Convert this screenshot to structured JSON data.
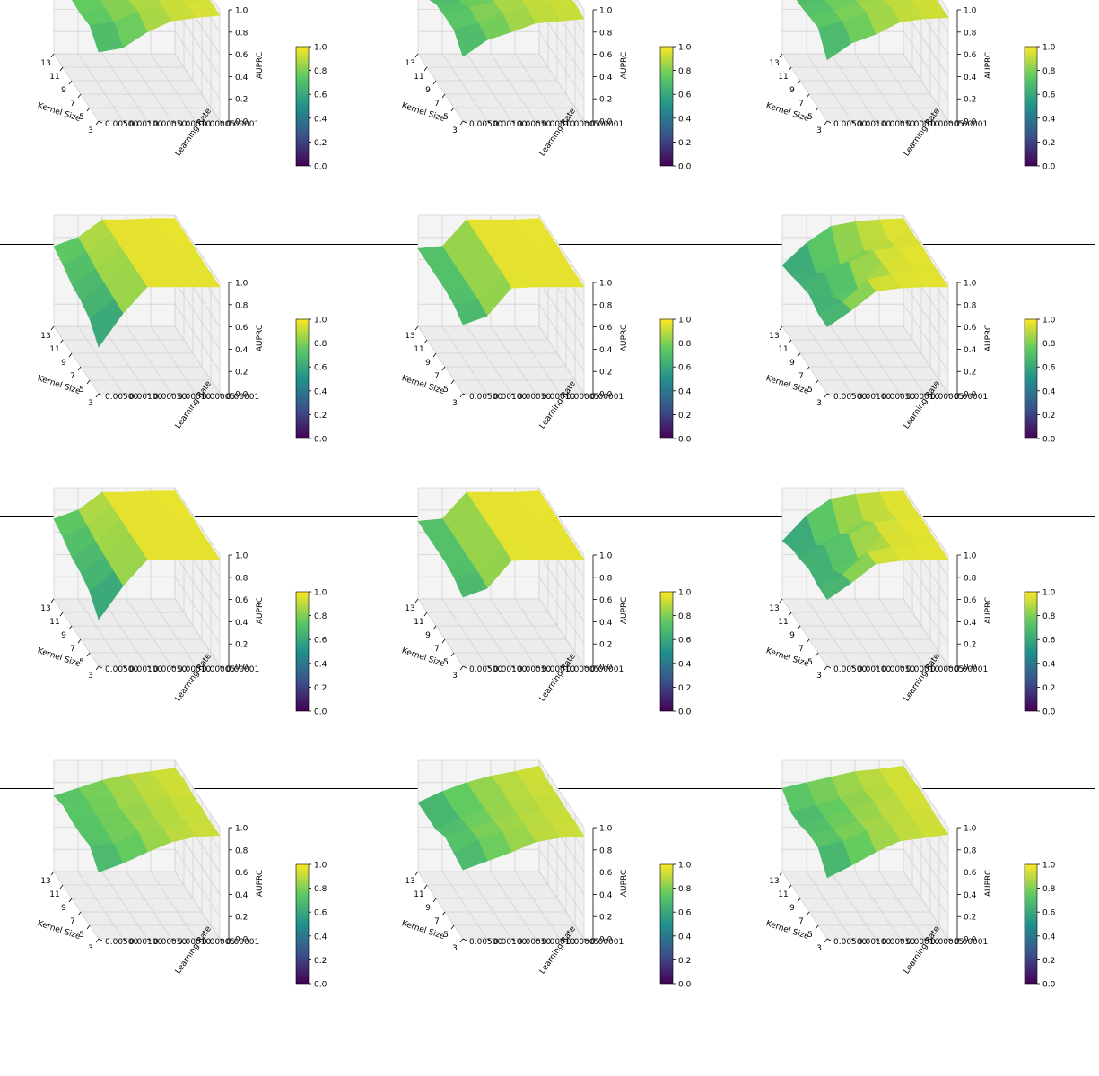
{
  "figure": {
    "rows": 4,
    "cols": 3,
    "zlabel": "AUPRC",
    "xlabel": "Kernel Size",
    "ylabel": "Learning Rate",
    "x_ticks": [
      "13",
      "11",
      "9",
      "7",
      "5",
      "3"
    ],
    "y_ticks": [
      "0.00001",
      "0.00005",
      "0.00010",
      "0.00050",
      "0.00100",
      "0.00500"
    ],
    "z_ticks": [
      "0.0",
      "0.2",
      "0.4",
      "0.6",
      "0.8",
      "1.0"
    ],
    "colorbar_ticks": [
      "0.0",
      "0.2",
      "0.4",
      "0.6",
      "0.8",
      "1.0"
    ],
    "colormap": "viridis"
  },
  "chart_data": [
    {
      "type": "surface",
      "xlabel": "Kernel Size",
      "ylabel": "Learning Rate",
      "zlabel": "AUPRC",
      "zlim": [
        0,
        1
      ],
      "x": [
        13,
        11,
        9,
        7,
        5,
        3
      ],
      "y": [
        "0.00001",
        "0.00005",
        "0.00010",
        "0.00050",
        "0.00100",
        "0.00500"
      ],
      "z": [
        [
          0.92,
          0.95,
          0.93,
          0.93,
          0.95,
          0.95
        ],
        [
          0.9,
          0.93,
          0.92,
          0.92,
          0.93,
          0.93
        ],
        [
          0.88,
          0.9,
          0.91,
          0.9,
          0.91,
          0.9
        ],
        [
          0.84,
          0.86,
          0.85,
          0.83,
          0.86,
          0.8
        ],
        [
          0.8,
          0.8,
          0.8,
          0.77,
          0.77,
          0.66
        ],
        [
          0.7,
          0.75,
          0.73,
          0.72,
          0.74,
          0.62
        ]
      ]
    },
    {
      "type": "surface",
      "xlabel": "Kernel Size",
      "ylabel": "Learning Rate",
      "zlabel": "AUPRC",
      "zlim": [
        0,
        1
      ],
      "x": [
        13,
        11,
        9,
        7,
        5,
        3
      ],
      "y": [
        "0.00001",
        "0.00005",
        "0.00010",
        "0.00050",
        "0.00100",
        "0.00500"
      ],
      "z": [
        [
          0.93,
          0.95,
          0.93,
          0.92,
          0.93,
          0.92
        ],
        [
          0.9,
          0.92,
          0.91,
          0.91,
          0.92,
          0.9
        ],
        [
          0.87,
          0.9,
          0.86,
          0.9,
          0.9,
          0.88
        ],
        [
          0.8,
          0.82,
          0.77,
          0.83,
          0.85,
          0.8
        ],
        [
          0.75,
          0.75,
          0.7,
          0.78,
          0.76,
          0.73
        ],
        [
          0.72,
          0.62,
          0.69,
          0.7,
          0.7,
          0.58
        ]
      ]
    },
    {
      "type": "surface",
      "xlabel": "Kernel Size",
      "ylabel": "Learning Rate",
      "zlabel": "AUPRC",
      "zlim": [
        0,
        1
      ],
      "x": [
        13,
        11,
        9,
        7,
        5,
        3
      ],
      "y": [
        "0.00001",
        "0.00005",
        "0.00010",
        "0.00050",
        "0.00100",
        "0.00500"
      ],
      "z": [
        [
          0.95,
          0.93,
          0.93,
          0.94,
          0.93,
          0.93
        ],
        [
          0.9,
          0.92,
          0.9,
          0.93,
          0.92,
          0.92
        ],
        [
          0.88,
          0.87,
          0.88,
          0.85,
          0.9,
          0.89
        ],
        [
          0.8,
          0.75,
          0.8,
          0.82,
          0.85,
          0.78
        ],
        [
          0.74,
          0.7,
          0.72,
          0.75,
          0.77,
          0.7
        ],
        [
          0.7,
          0.68,
          0.68,
          0.7,
          0.72,
          0.55
        ]
      ]
    },
    {
      "type": "surface",
      "xlabel": "Kernel Size",
      "ylabel": "Learning Rate",
      "zlabel": "AUPRC",
      "zlim": [
        0,
        1
      ],
      "x": [
        13,
        11,
        9,
        7,
        5,
        3
      ],
      "y": [
        "0.00001",
        "0.00005",
        "0.00010",
        "0.00050",
        "0.00100",
        "0.00500"
      ],
      "z": [
        [
          0.97,
          0.97,
          0.97,
          0.96,
          0.96,
          0.96
        ],
        [
          0.97,
          0.96,
          0.96,
          0.96,
          0.96,
          0.96
        ],
        [
          0.96,
          0.96,
          0.96,
          0.96,
          0.96,
          0.96
        ],
        [
          0.96,
          0.96,
          0.96,
          0.96,
          0.96,
          0.96
        ],
        [
          0.8,
          0.78,
          0.75,
          0.74,
          0.73,
          0.72
        ],
        [
          0.72,
          0.68,
          0.62,
          0.6,
          0.55,
          0.42
        ]
      ]
    },
    {
      "type": "surface",
      "xlabel": "Kernel Size",
      "ylabel": "Learning Rate",
      "zlabel": "AUPRC",
      "zlim": [
        0,
        1
      ],
      "x": [
        13,
        11,
        9,
        7,
        5,
        3
      ],
      "y": [
        "0.00001",
        "0.00005",
        "0.00010",
        "0.00050",
        "0.00100",
        "0.00500"
      ],
      "z": [
        [
          0.97,
          0.97,
          0.97,
          0.96,
          0.96,
          0.96
        ],
        [
          0.96,
          0.96,
          0.96,
          0.96,
          0.96,
          0.96
        ],
        [
          0.96,
          0.96,
          0.96,
          0.96,
          0.96,
          0.96
        ],
        [
          0.96,
          0.96,
          0.96,
          0.96,
          0.96,
          0.95
        ],
        [
          0.72,
          0.72,
          0.72,
          0.72,
          0.72,
          0.7
        ],
        [
          0.7,
          0.7,
          0.7,
          0.7,
          0.68,
          0.62
        ]
      ]
    },
    {
      "type": "surface",
      "xlabel": "Kernel Size",
      "ylabel": "Learning Rate",
      "zlabel": "AUPRC",
      "zlim": [
        0,
        1
      ],
      "x": [
        13,
        11,
        9,
        7,
        5,
        3
      ],
      "y": [
        "0.00001",
        "0.00005",
        "0.00010",
        "0.00050",
        "0.00100",
        "0.00500"
      ],
      "z": [
        [
          0.97,
          0.96,
          0.97,
          0.96,
          0.96,
          0.96
        ],
        [
          0.96,
          0.9,
          0.95,
          0.95,
          0.95,
          0.96
        ],
        [
          0.94,
          0.8,
          0.92,
          0.93,
          0.95,
          0.95
        ],
        [
          0.9,
          0.68,
          0.82,
          0.7,
          0.9,
          0.92
        ],
        [
          0.75,
          0.6,
          0.72,
          0.62,
          0.7,
          0.75
        ],
        [
          0.55,
          0.58,
          0.62,
          0.65,
          0.6,
          0.6
        ]
      ]
    },
    {
      "type": "surface",
      "xlabel": "Kernel Size",
      "ylabel": "Learning Rate",
      "zlabel": "AUPRC",
      "zlim": [
        0,
        1
      ],
      "x": [
        13,
        11,
        9,
        7,
        5,
        3
      ],
      "y": [
        "0.00001",
        "0.00005",
        "0.00010",
        "0.00050",
        "0.00100",
        "0.00500"
      ],
      "z": [
        [
          0.97,
          0.97,
          0.97,
          0.96,
          0.96,
          0.96
        ],
        [
          0.97,
          0.96,
          0.96,
          0.96,
          0.96,
          0.96
        ],
        [
          0.96,
          0.96,
          0.96,
          0.96,
          0.96,
          0.96
        ],
        [
          0.96,
          0.96,
          0.96,
          0.96,
          0.96,
          0.96
        ],
        [
          0.8,
          0.78,
          0.75,
          0.74,
          0.73,
          0.72
        ],
        [
          0.72,
          0.68,
          0.62,
          0.6,
          0.55,
          0.42
        ]
      ]
    },
    {
      "type": "surface",
      "xlabel": "Kernel Size",
      "ylabel": "Learning Rate",
      "zlabel": "AUPRC",
      "zlim": [
        0,
        1
      ],
      "x": [
        13,
        11,
        9,
        7,
        5,
        3
      ],
      "y": [
        "0.00001",
        "0.00005",
        "0.00010",
        "0.00050",
        "0.00100",
        "0.00500"
      ],
      "z": [
        [
          0.97,
          0.97,
          0.97,
          0.96,
          0.96,
          0.96
        ],
        [
          0.96,
          0.96,
          0.96,
          0.96,
          0.96,
          0.96
        ],
        [
          0.96,
          0.96,
          0.96,
          0.96,
          0.96,
          0.96
        ],
        [
          0.96,
          0.96,
          0.96,
          0.96,
          0.96,
          0.95
        ],
        [
          0.72,
          0.72,
          0.72,
          0.72,
          0.72,
          0.7
        ],
        [
          0.7,
          0.7,
          0.7,
          0.7,
          0.68,
          0.62
        ]
      ]
    },
    {
      "type": "surface",
      "xlabel": "Kernel Size",
      "ylabel": "Learning Rate",
      "zlabel": "AUPRC",
      "zlim": [
        0,
        1
      ],
      "x": [
        13,
        11,
        9,
        7,
        5,
        3
      ],
      "y": [
        "0.00001",
        "0.00005",
        "0.00010",
        "0.00050",
        "0.00100",
        "0.00500"
      ],
      "z": [
        [
          0.97,
          0.96,
          0.97,
          0.96,
          0.96,
          0.96
        ],
        [
          0.96,
          0.92,
          0.95,
          0.95,
          0.95,
          0.96
        ],
        [
          0.94,
          0.82,
          0.93,
          0.93,
          0.95,
          0.95
        ],
        [
          0.9,
          0.7,
          0.82,
          0.72,
          0.9,
          0.92
        ],
        [
          0.75,
          0.6,
          0.72,
          0.62,
          0.7,
          0.75
        ],
        [
          0.52,
          0.58,
          0.6,
          0.63,
          0.6,
          0.6
        ]
      ]
    },
    {
      "type": "surface",
      "xlabel": "Kernel Size",
      "ylabel": "Learning Rate",
      "zlabel": "AUPRC",
      "zlim": [
        0,
        1
      ],
      "x": [
        13,
        11,
        9,
        7,
        5,
        3
      ],
      "y": [
        "0.00001",
        "0.00005",
        "0.00010",
        "0.00050",
        "0.00100",
        "0.00500"
      ],
      "z": [
        [
          0.93,
          0.95,
          0.93,
          0.93,
          0.92,
          0.93
        ],
        [
          0.9,
          0.92,
          0.91,
          0.9,
          0.91,
          0.92
        ],
        [
          0.87,
          0.89,
          0.88,
          0.86,
          0.88,
          0.87
        ],
        [
          0.82,
          0.83,
          0.8,
          0.82,
          0.84,
          0.78
        ],
        [
          0.75,
          0.76,
          0.75,
          0.74,
          0.73,
          0.68
        ],
        [
          0.68,
          0.72,
          0.7,
          0.7,
          0.72,
          0.6
        ]
      ]
    },
    {
      "type": "surface",
      "xlabel": "Kernel Size",
      "ylabel": "Learning Rate",
      "zlabel": "AUPRC",
      "zlim": [
        0,
        1
      ],
      "x": [
        13,
        11,
        9,
        7,
        5,
        3
      ],
      "y": [
        "0.00001",
        "0.00005",
        "0.00010",
        "0.00050",
        "0.00100",
        "0.00500"
      ],
      "z": [
        [
          0.95,
          0.93,
          0.93,
          0.92,
          0.93,
          0.92
        ],
        [
          0.9,
          0.92,
          0.9,
          0.9,
          0.92,
          0.91
        ],
        [
          0.86,
          0.88,
          0.86,
          0.87,
          0.88,
          0.87
        ],
        [
          0.8,
          0.8,
          0.8,
          0.82,
          0.84,
          0.78
        ],
        [
          0.72,
          0.7,
          0.72,
          0.75,
          0.77,
          0.7
        ],
        [
          0.62,
          0.62,
          0.62,
          0.68,
          0.65,
          0.62
        ]
      ]
    },
    {
      "type": "surface",
      "xlabel": "Kernel Size",
      "ylabel": "Learning Rate",
      "zlabel": "AUPRC",
      "zlim": [
        0,
        1
      ],
      "x": [
        13,
        11,
        9,
        7,
        5,
        3
      ],
      "y": [
        "0.00001",
        "0.00005",
        "0.00010",
        "0.00050",
        "0.00100",
        "0.00500"
      ],
      "z": [
        [
          0.95,
          0.95,
          0.96,
          0.94,
          0.93,
          0.94
        ],
        [
          0.92,
          0.9,
          0.92,
          0.92,
          0.92,
          0.91
        ],
        [
          0.9,
          0.85,
          0.88,
          0.86,
          0.9,
          0.88
        ],
        [
          0.85,
          0.78,
          0.8,
          0.82,
          0.85,
          0.78
        ],
        [
          0.8,
          0.72,
          0.72,
          0.74,
          0.76,
          0.66
        ],
        [
          0.75,
          0.65,
          0.66,
          0.7,
          0.7,
          0.55
        ]
      ]
    }
  ]
}
